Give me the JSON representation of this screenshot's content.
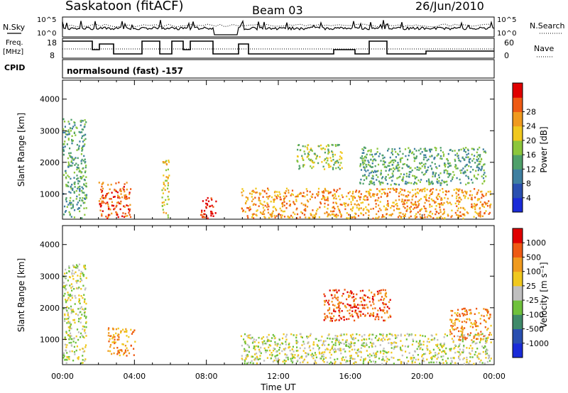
{
  "header": {
    "site": "Saskatoon (fitACF)",
    "beam": "Beam 03",
    "date": "26/Jun/2010"
  },
  "info": {
    "nsky_label": "N.Sky",
    "nsky_ticks": [
      "10^5",
      "10^0"
    ],
    "nsearch_label": "N.Search",
    "nsearch_ticks": [
      "10^5",
      "10^0"
    ],
    "freq_label_line1": "Freq.",
    "freq_label_line2": "[MHz]",
    "freq_ticks": [
      "18",
      "8"
    ],
    "nave_label": "Nave",
    "nave_ticks": [
      "60",
      "0"
    ],
    "cpid_label": "CPID",
    "cpid_text": "normalsound (fast) -157"
  },
  "chart_data": [
    {
      "type": "heatmap",
      "name": "power-panel",
      "ylabel": "Slant Range [km]",
      "yticks": [
        1000,
        2000,
        3000,
        4000
      ],
      "ylim": [
        200,
        4600
      ],
      "xlim": [
        0,
        24
      ],
      "colorbar": {
        "label": "Power [dB]",
        "ticks": [
          "4",
          "8",
          "12",
          "16",
          "20",
          "24",
          "28"
        ],
        "colors": [
          "#1a2bd8",
          "#2a4fb0",
          "#3f7fa0",
          "#4fa06a",
          "#8cc63c",
          "#f0c81e",
          "#f09a1e",
          "#ee5a14",
          "#e00000"
        ]
      },
      "echo_regions": [
        {
          "t0": 0.0,
          "t1": 1.3,
          "r0": 250,
          "r1": 3400,
          "level": 3
        },
        {
          "t0": 2.0,
          "t1": 3.8,
          "r0": 250,
          "r1": 1400,
          "level": 7
        },
        {
          "t0": 5.5,
          "t1": 5.9,
          "r0": 250,
          "r1": 2100,
          "level": 5
        },
        {
          "t0": 7.6,
          "t1": 8.5,
          "r0": 250,
          "r1": 900,
          "level": 8
        },
        {
          "t0": 9.9,
          "t1": 23.8,
          "r0": 250,
          "r1": 1200,
          "level": 6
        },
        {
          "t0": 13.0,
          "t1": 15.5,
          "r0": 1800,
          "r1": 2600,
          "level": 4
        },
        {
          "t0": 16.5,
          "t1": 23.5,
          "r0": 1300,
          "r1": 2500,
          "level": 3
        }
      ]
    },
    {
      "type": "heatmap",
      "name": "velocity-panel",
      "ylabel": "Slant Range [km]",
      "xlabel": "Time UT",
      "xticks": [
        "00:00",
        "04:00",
        "08:00",
        "12:00",
        "16:00",
        "20:00",
        "00:00"
      ],
      "yticks": [
        1000,
        2000,
        3000,
        4000
      ],
      "ylim": [
        200,
        4600
      ],
      "xlim": [
        0,
        24
      ],
      "colorbar": {
        "label": "Velocity [m s⁻¹]",
        "ticks": [
          "1000",
          "500",
          "100",
          "25",
          "-25",
          "-100",
          "-500",
          "-1000"
        ],
        "colors": [
          "#1a2bd8",
          "#2a4fb0",
          "#3f8a6a",
          "#6fc13c",
          "#bfbfbf",
          "#f0c81e",
          "#f09a1e",
          "#ee5a14",
          "#e00000"
        ]
      },
      "echo_regions": [
        {
          "t0": 0.0,
          "t1": 1.3,
          "r0": 250,
          "r1": 3400,
          "level": 4
        },
        {
          "t0": 2.5,
          "t1": 4.0,
          "r0": 500,
          "r1": 1400,
          "level": 6
        },
        {
          "t0": 9.9,
          "t1": 23.8,
          "r0": 250,
          "r1": 1200,
          "level": 4
        },
        {
          "t0": 14.5,
          "t1": 18.2,
          "r0": 1600,
          "r1": 2600,
          "level": 7
        },
        {
          "t0": 21.5,
          "t1": 23.8,
          "r0": 1000,
          "r1": 2000,
          "level": 6
        }
      ]
    }
  ],
  "colors": {
    "frame": "#000000",
    "background": "#ffffff"
  }
}
